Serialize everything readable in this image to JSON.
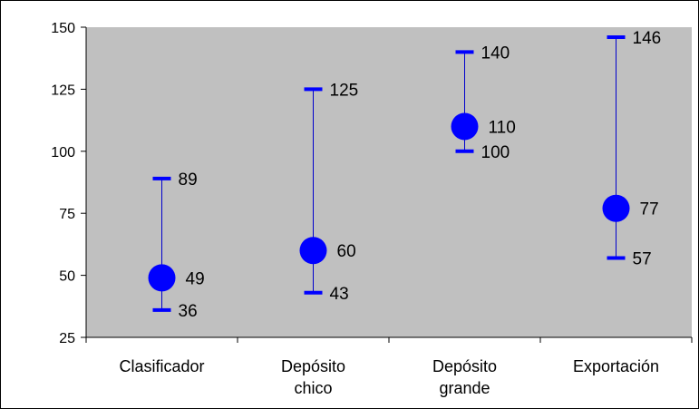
{
  "chart_data": {
    "type": "scatter",
    "categories": [
      "Clasificador",
      "Depósito chico",
      "Depósito grande",
      "Exportación"
    ],
    "category_lines": [
      [
        "Clasificador"
      ],
      [
        "Depósito",
        "chico"
      ],
      [
        "Depósito",
        "grande"
      ],
      [
        "Exportación"
      ]
    ],
    "series": [
      {
        "values": [
          49,
          60,
          110,
          77
        ]
      },
      {
        "values": [
          36,
          43,
          100,
          57
        ]
      },
      {
        "values": [
          89,
          125,
          140,
          146
        ]
      }
    ],
    "value_labels": [
      {
        "mid": "49",
        "low": "36",
        "high": "89"
      },
      {
        "mid": "60",
        "low": "43",
        "high": "125"
      },
      {
        "mid": "110",
        "low": "100",
        "high": "140"
      },
      {
        "mid": "77",
        "low": "57",
        "high": "146"
      }
    ],
    "ylim": [
      25,
      150
    ],
    "yticks": [
      25,
      50,
      75,
      100,
      125,
      150
    ],
    "ytick_labels": [
      "25",
      "50",
      "75",
      "100",
      "125",
      "150"
    ],
    "ylabel": "",
    "xlabel": "",
    "title": "",
    "grid": false,
    "legend": "none",
    "colors": {
      "plot_area": "#c0c0c0",
      "marker": "#0000ff",
      "range_line": "#0000cc",
      "axis": "#000000",
      "border": "#000000"
    }
  }
}
